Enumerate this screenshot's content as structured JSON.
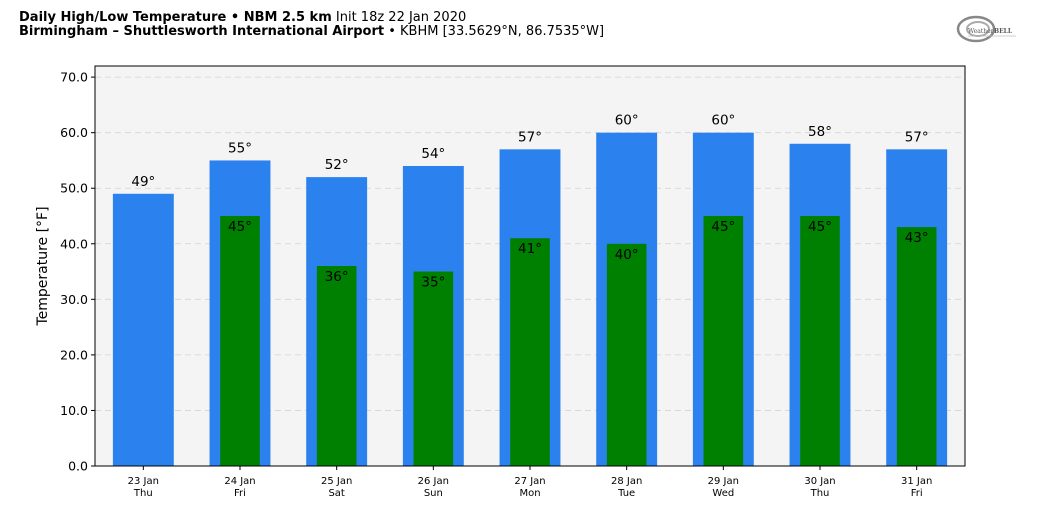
{
  "header": {
    "title_bold": "Daily High/Low Temperature • NBM 2.5 km",
    "title_init": "Init 18z 22 Jan 2020",
    "location_bold": "Birmingham – Shuttlesworth International Airport",
    "location_detail": "• KBHM [33.5629°N, 86.7535°W]"
  },
  "logo": {
    "text_a": "Weather",
    "text_b": "BELL"
  },
  "chart_data": {
    "type": "bar",
    "ylabel": "Temperature [°F]",
    "ylim": [
      0,
      72
    ],
    "yticks": [
      "0.0",
      "10.0",
      "20.0",
      "30.0",
      "40.0",
      "50.0",
      "60.0",
      "70.0"
    ],
    "grid": true,
    "categories": [
      {
        "date": "23 Jan",
        "day": "Thu"
      },
      {
        "date": "24 Jan",
        "day": "Fri"
      },
      {
        "date": "25 Jan",
        "day": "Sat"
      },
      {
        "date": "26 Jan",
        "day": "Sun"
      },
      {
        "date": "27 Jan",
        "day": "Mon"
      },
      {
        "date": "28 Jan",
        "day": "Tue"
      },
      {
        "date": "29 Jan",
        "day": "Wed"
      },
      {
        "date": "30 Jan",
        "day": "Thu"
      },
      {
        "date": "31 Jan",
        "day": "Fri"
      }
    ],
    "series": [
      {
        "values": [
          49,
          55,
          52,
          54,
          57,
          60,
          60,
          58,
          57
        ],
        "labels": [
          "49°",
          "55°",
          "52°",
          "54°",
          "57°",
          "60°",
          "60°",
          "58°",
          "57°"
        ],
        "color": "#2b82ef"
      },
      {
        "values": [
          null,
          45,
          36,
          35,
          41,
          40,
          45,
          45,
          43
        ],
        "labels": [
          "",
          "45°",
          "36°",
          "35°",
          "41°",
          "40°",
          "45°",
          "45°",
          "43°"
        ],
        "color": "#008000"
      }
    ]
  }
}
